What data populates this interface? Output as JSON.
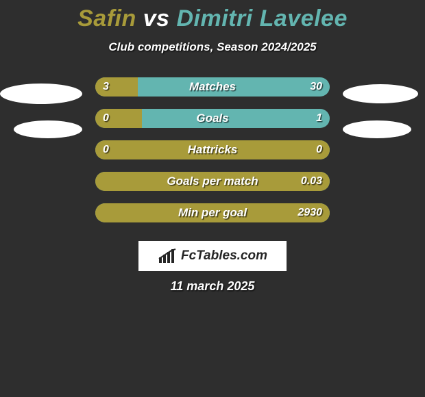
{
  "title": {
    "player_a": "Safin",
    "vs": "vs",
    "player_b": "Dimitri Lavelee",
    "color_a": "#a89b3a",
    "color_vs": "#ffffff",
    "color_b": "#63b5b0"
  },
  "subtitle": "Club competitions, Season 2024/2025",
  "colors": {
    "left_bar": "#a89b3a",
    "right_bar": "#63b5b0",
    "background": "#2e2e2e"
  },
  "rows": [
    {
      "label": "Matches",
      "left_val": "3",
      "right_val": "30",
      "left_pct": 18
    },
    {
      "label": "Goals",
      "left_val": "0",
      "right_val": "1",
      "left_pct": 20
    },
    {
      "label": "Hattricks",
      "left_val": "0",
      "right_val": "0",
      "left_pct": 100
    },
    {
      "label": "Goals per match",
      "left_val": "",
      "right_val": "0.03",
      "left_pct": 100
    },
    {
      "label": "Min per goal",
      "left_val": "",
      "right_val": "2930",
      "left_pct": 100
    }
  ],
  "logo_text": "FcTables.com",
  "date": "11 march 2025"
}
